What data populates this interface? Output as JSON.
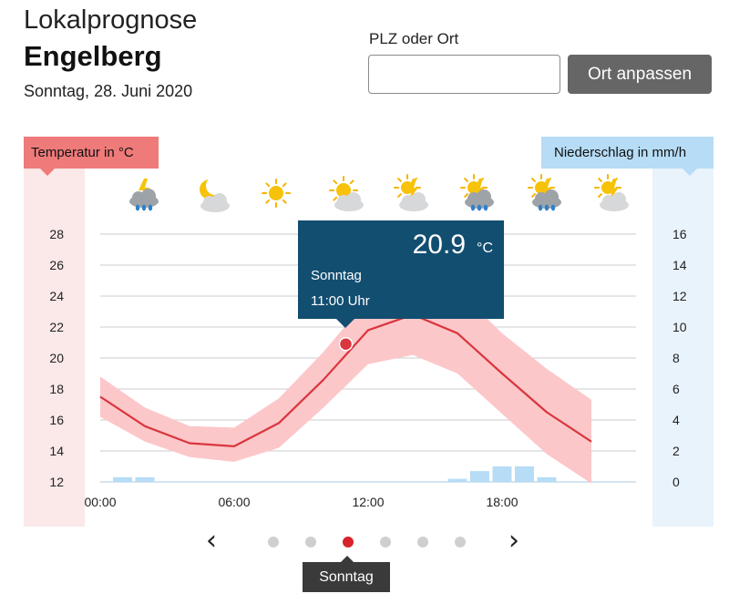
{
  "header": {
    "subtitle": "Lokalprognose",
    "location": "Engelberg",
    "date": "Sonntag, 28. Juni 2020"
  },
  "search": {
    "label": "PLZ oder Ort",
    "value": "",
    "button_label": "Ort anpassen"
  },
  "axes": {
    "temp_label": "Temperatur in °C",
    "precip_label": "Niederschlag in mm/h"
  },
  "tooltip": {
    "value": "20.9",
    "unit": "°C",
    "day": "Sonntag",
    "time": "11:00 Uhr"
  },
  "pager": {
    "prev_icon": "chevron-left-icon",
    "next_icon": "chevron-right-icon",
    "day_count": 6,
    "active_index": 2,
    "active_label": "Sonntag"
  },
  "weather_icons": [
    "thunderstorm-rain-icon",
    "moon-cloud-icon",
    "sun-icon",
    "sun-cloud-icon",
    "sun-thunder-cloud-icon",
    "sun-thunderstorm-rain-icon",
    "sun-thunderstorm-rain-icon",
    "sun-thunder-cloud-icon"
  ],
  "colors": {
    "temp_line": "#d9363e",
    "temp_band": "#fcc7c9",
    "precip_bar": "#b6dcf6",
    "tooltip_bg": "#124e70",
    "active_dot": "#d8232a"
  },
  "chart_data": {
    "type": "line",
    "x": [
      "00:00",
      "02:00",
      "04:00",
      "06:00",
      "08:00",
      "10:00",
      "12:00",
      "14:00",
      "16:00",
      "18:00",
      "20:00",
      "22:00"
    ],
    "x_ticks": [
      "00:00",
      "06:00",
      "12:00",
      "18:00"
    ],
    "temp": {
      "values": [
        17.5,
        15.6,
        14.5,
        14.3,
        15.8,
        18.6,
        21.8,
        22.8,
        21.6,
        19.0,
        16.5,
        14.6
      ],
      "min": [
        16.2,
        14.6,
        13.6,
        13.3,
        14.2,
        16.8,
        19.6,
        20.2,
        19.0,
        16.4,
        13.8,
        11.9
      ],
      "max": [
        18.8,
        16.8,
        15.6,
        15.5,
        17.4,
        20.4,
        23.8,
        25.2,
        24.4,
        21.6,
        19.3,
        17.3
      ]
    },
    "precip": {
      "x": [
        "01:00",
        "02:00",
        "16:00",
        "17:00",
        "18:00",
        "19:00",
        "20:00"
      ],
      "values": [
        0.3,
        0.3,
        0.2,
        0.7,
        1.0,
        1.0,
        0.3
      ]
    },
    "temp_ylim": [
      12,
      28
    ],
    "temp_ticks": [
      "12",
      "14",
      "16",
      "18",
      "20",
      "22",
      "24",
      "26",
      "28"
    ],
    "precip_ylim": [
      0,
      16
    ],
    "precip_ticks": [
      "0",
      "2",
      "4",
      "6",
      "8",
      "10",
      "12",
      "14",
      "16"
    ],
    "highlight": {
      "x": "11:00",
      "value": 20.9
    },
    "grid": true
  }
}
